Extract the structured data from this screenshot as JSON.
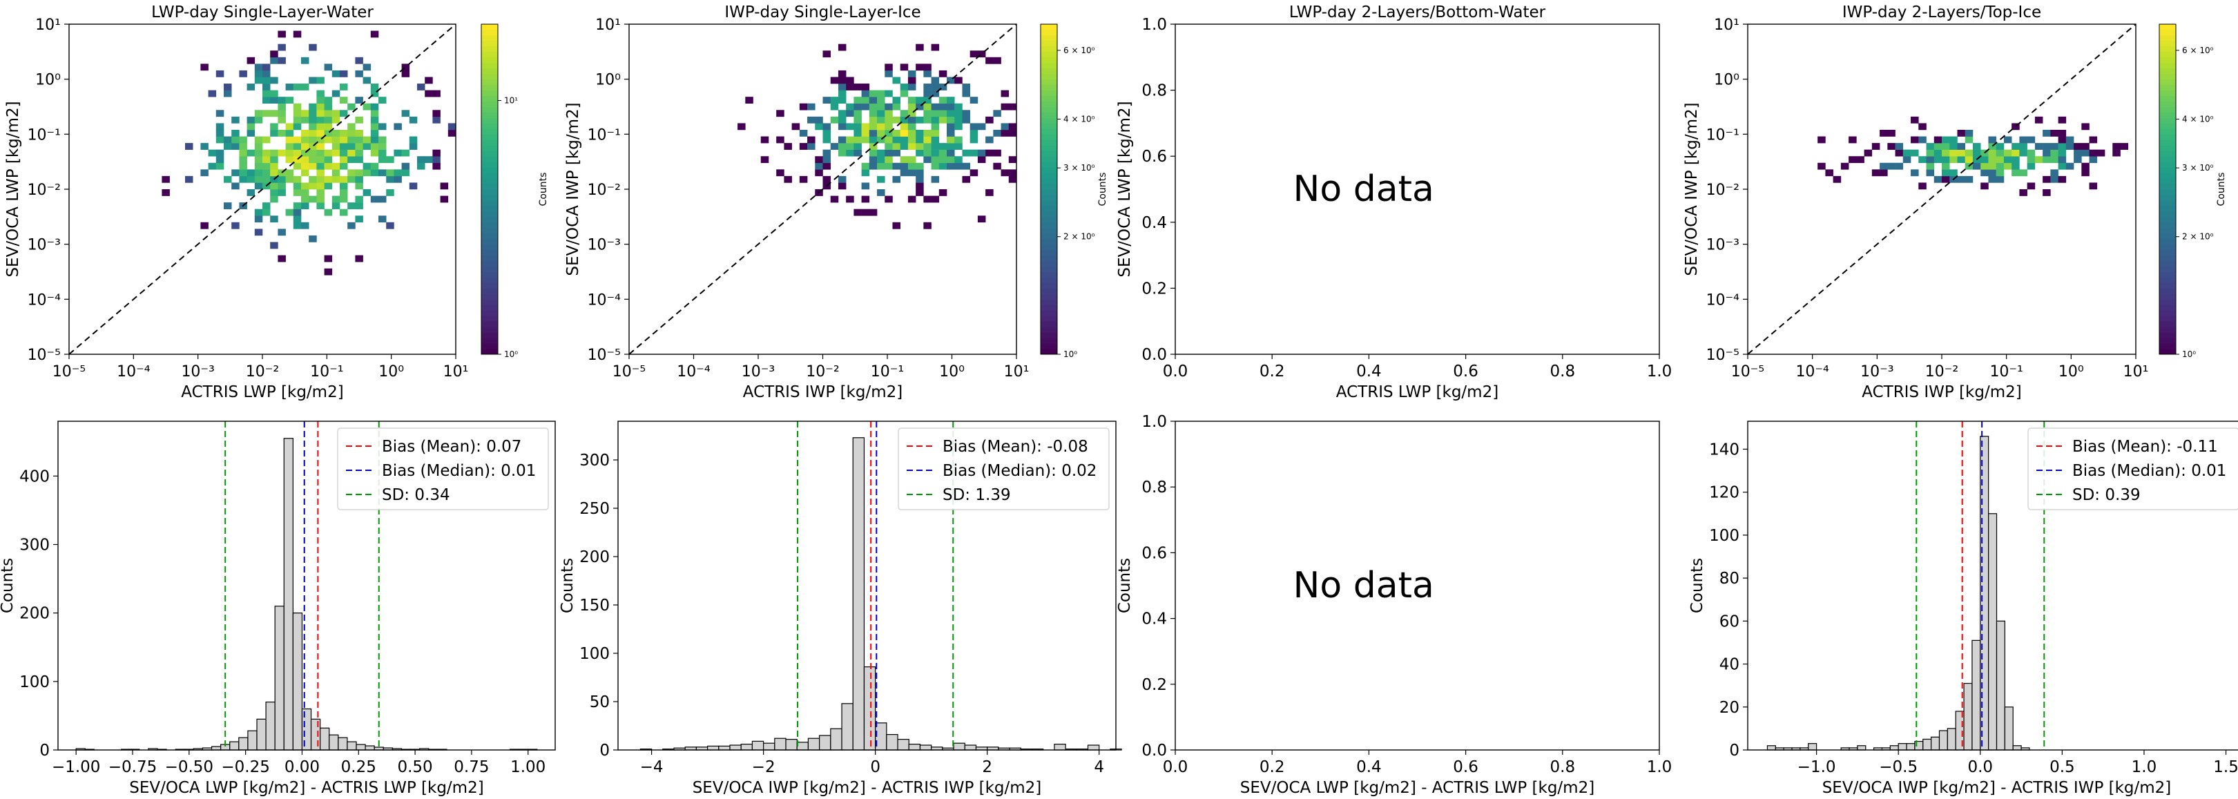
{
  "chart_data": [
    {
      "type": "heatmap",
      "title": "LWP-day Single-Layer-Water",
      "xlabel": "ACTRIS LWP [kg/m2]",
      "ylabel": "SEV/OCA LWP [kg/m2]",
      "xscale": "log",
      "yscale": "log",
      "xlim": [
        1e-05,
        10
      ],
      "ylim": [
        1e-05,
        10
      ],
      "x_ticks": [
        "10⁻⁵",
        "10⁻⁴",
        "10⁻³",
        "10⁻²",
        "10⁻¹",
        "10⁰",
        "10¹"
      ],
      "y_ticks": [
        "10⁻⁵",
        "10⁻⁴",
        "10⁻³",
        "10⁻²",
        "10⁻¹",
        "10⁰",
        "10¹"
      ],
      "reference_line": "1:1 dashed",
      "colorbar": {
        "label": "Counts",
        "scale": "log",
        "ticks": [
          "10⁰",
          "10¹"
        ],
        "range": [
          1,
          20
        ]
      },
      "cluster": {
        "center_log": [
          -1.2,
          -1.3
        ],
        "spread_log": [
          1.0,
          0.9
        ],
        "peak_count": 20
      }
    },
    {
      "type": "heatmap",
      "title": "IWP-day Single-Layer-Ice",
      "xlabel": "ACTRIS IWP [kg/m2]",
      "ylabel": "SEV/OCA IWP [kg/m2]",
      "xscale": "log",
      "yscale": "log",
      "xlim": [
        1e-05,
        10
      ],
      "ylim": [
        1e-05,
        10
      ],
      "x_ticks": [
        "10⁻⁵",
        "10⁻⁴",
        "10⁻³",
        "10⁻²",
        "10⁻¹",
        "10⁰",
        "10¹"
      ],
      "y_ticks": [
        "10⁻⁵",
        "10⁻⁴",
        "10⁻³",
        "10⁻²",
        "10⁻¹",
        "10⁰",
        "10¹"
      ],
      "reference_line": "1:1 dashed",
      "colorbar": {
        "label": "Counts",
        "scale": "log",
        "ticks": [
          "10⁰",
          "2 × 10⁰",
          "3 × 10⁰",
          "4 × 10⁰",
          "6 × 10⁰"
        ],
        "range": [
          1,
          7
        ]
      },
      "cluster": {
        "center_log": [
          -0.8,
          -1.0
        ],
        "spread_log": [
          1.0,
          0.7
        ],
        "peak_count": 7
      }
    },
    {
      "type": "empty",
      "title": "LWP-day 2-Layers/Bottom-Water",
      "xlabel": "ACTRIS LWP [kg/m2]",
      "ylabel": "SEV/OCA LWP [kg/m2]",
      "xlim": [
        0,
        1
      ],
      "ylim": [
        0,
        1
      ],
      "x_ticks": [
        "0.0",
        "0.2",
        "0.4",
        "0.6",
        "0.8",
        "1.0"
      ],
      "y_ticks": [
        "0.0",
        "0.2",
        "0.4",
        "0.6",
        "0.8",
        "1.0"
      ],
      "message": "No data"
    },
    {
      "type": "heatmap",
      "title": "IWP-day 2-Layers/Top-Ice",
      "xlabel": "ACTRIS IWP [kg/m2]",
      "ylabel": "SEV/OCA IWP [kg/m2]",
      "xscale": "log",
      "yscale": "log",
      "xlim": [
        1e-05,
        10
      ],
      "ylim": [
        1e-05,
        10
      ],
      "x_ticks": [
        "10⁻⁵",
        "10⁻⁴",
        "10⁻³",
        "10⁻²",
        "10⁻¹",
        "10⁰",
        "10¹"
      ],
      "y_ticks": [
        "10⁻⁵",
        "10⁻⁴",
        "10⁻³",
        "10⁻²",
        "10⁻¹",
        "10⁰",
        "10¹"
      ],
      "reference_line": "1:1 dashed",
      "colorbar": {
        "label": "Counts",
        "scale": "log",
        "ticks": [
          "10⁰",
          "2 × 10⁰",
          "3 × 10⁰",
          "4 × 10⁰",
          "6 × 10⁰"
        ],
        "range": [
          1,
          7
        ]
      },
      "cluster": {
        "center_log": [
          -1.3,
          -1.4
        ],
        "spread_log": [
          1.1,
          0.3
        ],
        "peak_count": 7
      }
    },
    {
      "type": "bar",
      "subtype": "histogram",
      "xlabel": "SEV/OCA LWP [kg/m2] - ACTRIS LWP [kg/m2]",
      "ylabel": "Counts",
      "xlim": [
        -1.08,
        1.12
      ],
      "ylim": [
        0,
        480
      ],
      "x_ticks": [
        -1.0,
        -0.75,
        -0.5,
        -0.25,
        0.0,
        0.25,
        0.5,
        0.75,
        1.0
      ],
      "x_tick_labels": [
        "−1.00",
        "−0.75",
        "−0.50",
        "−0.25",
        "0.00",
        "0.25",
        "0.50",
        "0.75",
        "1.00"
      ],
      "y_ticks": [
        0,
        100,
        200,
        300,
        400
      ],
      "bin_start": -1.0,
      "bin_width": 0.04,
      "counts": [
        2,
        1,
        0,
        0,
        0,
        1,
        1,
        0,
        2,
        1,
        0,
        1,
        1,
        2,
        3,
        5,
        8,
        12,
        18,
        28,
        45,
        70,
        210,
        455,
        200,
        60,
        45,
        32,
        22,
        18,
        12,
        8,
        6,
        4,
        3,
        2,
        1,
        1,
        2,
        1,
        1,
        0,
        0,
        0,
        0,
        0,
        0,
        0,
        1,
        1,
        1
      ],
      "lines": [
        {
          "label": "Bias (Mean): 0.07",
          "value": 0.07,
          "color": "#ff0000"
        },
        {
          "label": "Bias (Median): 0.01",
          "value": 0.01,
          "color": "#0000cc"
        },
        {
          "label": "SD: 0.34",
          "value": 0.34,
          "color": "#009900",
          "symmetric": true
        }
      ],
      "legend": "top-right"
    },
    {
      "type": "bar",
      "subtype": "histogram",
      "xlabel": "SEV/OCA IWP [kg/m2] - ACTRIS IWP [kg/m2]",
      "ylabel": "Counts",
      "xlim": [
        -4.6,
        4.3
      ],
      "ylim": [
        0,
        340
      ],
      "x_ticks": [
        -4,
        -2,
        0,
        2,
        4
      ],
      "x_tick_labels": [
        "−4",
        "−2",
        "0",
        "2",
        "4"
      ],
      "y_ticks": [
        0,
        50,
        100,
        150,
        200,
        250,
        300
      ],
      "bin_start": -4.2,
      "bin_width": 0.2,
      "counts": [
        1,
        0,
        1,
        2,
        3,
        3,
        4,
        4,
        5,
        6,
        9,
        7,
        12,
        11,
        8,
        12,
        15,
        22,
        48,
        323,
        86,
        28,
        16,
        11,
        6,
        5,
        3,
        2,
        7,
        5,
        3,
        3,
        2,
        2,
        1,
        1,
        0,
        6,
        1,
        1,
        5,
        0,
        1
      ],
      "lines": [
        {
          "label": "Bias (Mean): -0.08",
          "value": -0.08,
          "color": "#ff0000"
        },
        {
          "label": "Bias (Median): 0.02",
          "value": 0.02,
          "color": "#0000cc"
        },
        {
          "label": "SD: 1.39",
          "value": 1.39,
          "color": "#009900",
          "symmetric": true
        }
      ],
      "legend": "top-right"
    },
    {
      "type": "empty",
      "xlabel": "SEV/OCA LWP [kg/m2] - ACTRIS LWP [kg/m2]",
      "ylabel": "Counts",
      "xlim": [
        0,
        1
      ],
      "ylim": [
        0,
        1
      ],
      "x_ticks": [
        "0.0",
        "0.2",
        "0.4",
        "0.6",
        "0.8",
        "1.0"
      ],
      "y_ticks": [
        "0.0",
        "0.2",
        "0.4",
        "0.6",
        "0.8",
        "1.0"
      ],
      "message": "No data"
    },
    {
      "type": "bar",
      "subtype": "histogram",
      "xlabel": "SEV/OCA IWP [kg/m2] - ACTRIS IWP [kg/m2]",
      "ylabel": "Counts",
      "xlim": [
        -1.42,
        1.62
      ],
      "ylim": [
        0,
        153
      ],
      "x_ticks": [
        -1.0,
        -0.5,
        0.0,
        0.5,
        1.0,
        1.5
      ],
      "x_tick_labels": [
        "−1.0",
        "−0.5",
        "0.0",
        "0.5",
        "1.0",
        "1.5"
      ],
      "y_ticks": [
        0,
        20,
        40,
        60,
        80,
        100,
        120,
        140
      ],
      "bin_start": -1.3,
      "bin_width": 0.05,
      "counts": [
        2,
        1,
        1,
        1,
        1,
        3,
        0,
        0,
        0,
        1,
        1,
        2,
        0,
        1,
        1,
        2,
        3,
        3,
        4,
        5,
        6,
        9,
        10,
        18,
        31,
        51,
        146,
        110,
        60,
        20,
        2,
        1,
        0,
        0,
        0,
        0,
        0,
        0,
        0,
        0,
        0,
        0,
        0,
        0,
        0,
        0,
        0,
        0,
        0,
        0,
        0,
        0,
        0,
        0,
        0,
        0,
        0,
        0,
        0,
        0,
        0
      ],
      "lines": [
        {
          "label": "Bias (Mean): -0.11",
          "value": -0.11,
          "color": "#ff0000"
        },
        {
          "label": "Bias (Median): 0.01",
          "value": 0.01,
          "color": "#0000cc"
        },
        {
          "label": "SD: 0.39",
          "value": 0.39,
          "color": "#009900",
          "symmetric": true
        }
      ],
      "legend": "top-right"
    }
  ]
}
